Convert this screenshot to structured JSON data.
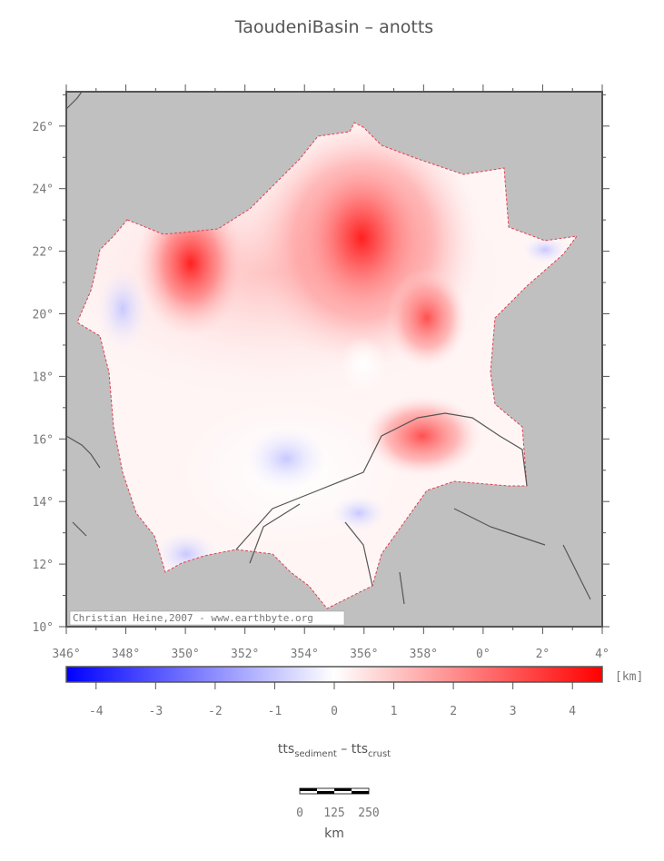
{
  "title": "TaoudeniBasin – anotts",
  "map": {
    "lat_labels": [
      "10°",
      "12°",
      "14°",
      "16°",
      "18°",
      "20°",
      "22°",
      "24°",
      "26°"
    ],
    "lon_labels": [
      "346°",
      "348°",
      "350°",
      "352°",
      "354°",
      "356°",
      "358°",
      "0°",
      "2°",
      "4°"
    ],
    "credit": "Christian Heine,2007 - www.earthbyte.org"
  },
  "colorbar": {
    "range": [
      -4.5,
      4.5
    ],
    "ticks": [
      -4,
      -3,
      -2,
      -1,
      0,
      1,
      2,
      3,
      4
    ],
    "unit": "[km]",
    "label": {
      "main1": "tts",
      "sub1": "sediment",
      "separator": " – ",
      "main2": "tts",
      "sub2": "crust"
    }
  },
  "scale_bar": {
    "labels": [
      "0",
      "125",
      "250"
    ],
    "unit": "km"
  }
}
